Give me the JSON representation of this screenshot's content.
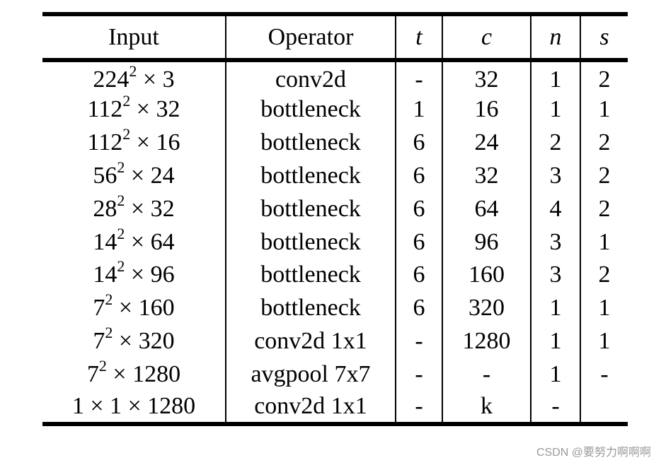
{
  "headers": [
    "Input",
    "Operator",
    "t",
    "c",
    "n",
    "s"
  ],
  "rows": [
    {
      "input_base": "224",
      "input_exp": "2",
      "input_rest": " × 3",
      "operator": "conv2d",
      "t": "-",
      "c": "32",
      "n": "1",
      "s": "2"
    },
    {
      "input_base": "112",
      "input_exp": "2",
      "input_rest": " × 32",
      "operator": "bottleneck",
      "t": "1",
      "c": "16",
      "n": "1",
      "s": "1"
    },
    {
      "input_base": "112",
      "input_exp": "2",
      "input_rest": " × 16",
      "operator": "bottleneck",
      "t": "6",
      "c": "24",
      "n": "2",
      "s": "2"
    },
    {
      "input_base": "56",
      "input_exp": "2",
      "input_rest": " × 24",
      "operator": "bottleneck",
      "t": "6",
      "c": "32",
      "n": "3",
      "s": "2"
    },
    {
      "input_base": "28",
      "input_exp": "2",
      "input_rest": " × 32",
      "operator": "bottleneck",
      "t": "6",
      "c": "64",
      "n": "4",
      "s": "2"
    },
    {
      "input_base": "14",
      "input_exp": "2",
      "input_rest": " × 64",
      "operator": "bottleneck",
      "t": "6",
      "c": "96",
      "n": "3",
      "s": "1"
    },
    {
      "input_base": "14",
      "input_exp": "2",
      "input_rest": " × 96",
      "operator": "bottleneck",
      "t": "6",
      "c": "160",
      "n": "3",
      "s": "2"
    },
    {
      "input_base": "7",
      "input_exp": "2",
      "input_rest": " × 160",
      "operator": "bottleneck",
      "t": "6",
      "c": "320",
      "n": "1",
      "s": "1"
    },
    {
      "input_base": "7",
      "input_exp": "2",
      "input_rest": " × 320",
      "operator": "conv2d 1x1",
      "t": "-",
      "c": "1280",
      "n": "1",
      "s": "1"
    },
    {
      "input_base": "7",
      "input_exp": "2",
      "input_rest": " × 1280",
      "operator": "avgpool 7x7",
      "t": "-",
      "c": "-",
      "n": "1",
      "s": "-"
    },
    {
      "input_base": "1 × 1 × 1280",
      "input_exp": "",
      "input_rest": "",
      "operator": "conv2d 1x1",
      "t": "-",
      "c": "k",
      "n": "-",
      "s": ""
    }
  ],
  "watermark": "CSDN @要努力啊啊啊"
}
